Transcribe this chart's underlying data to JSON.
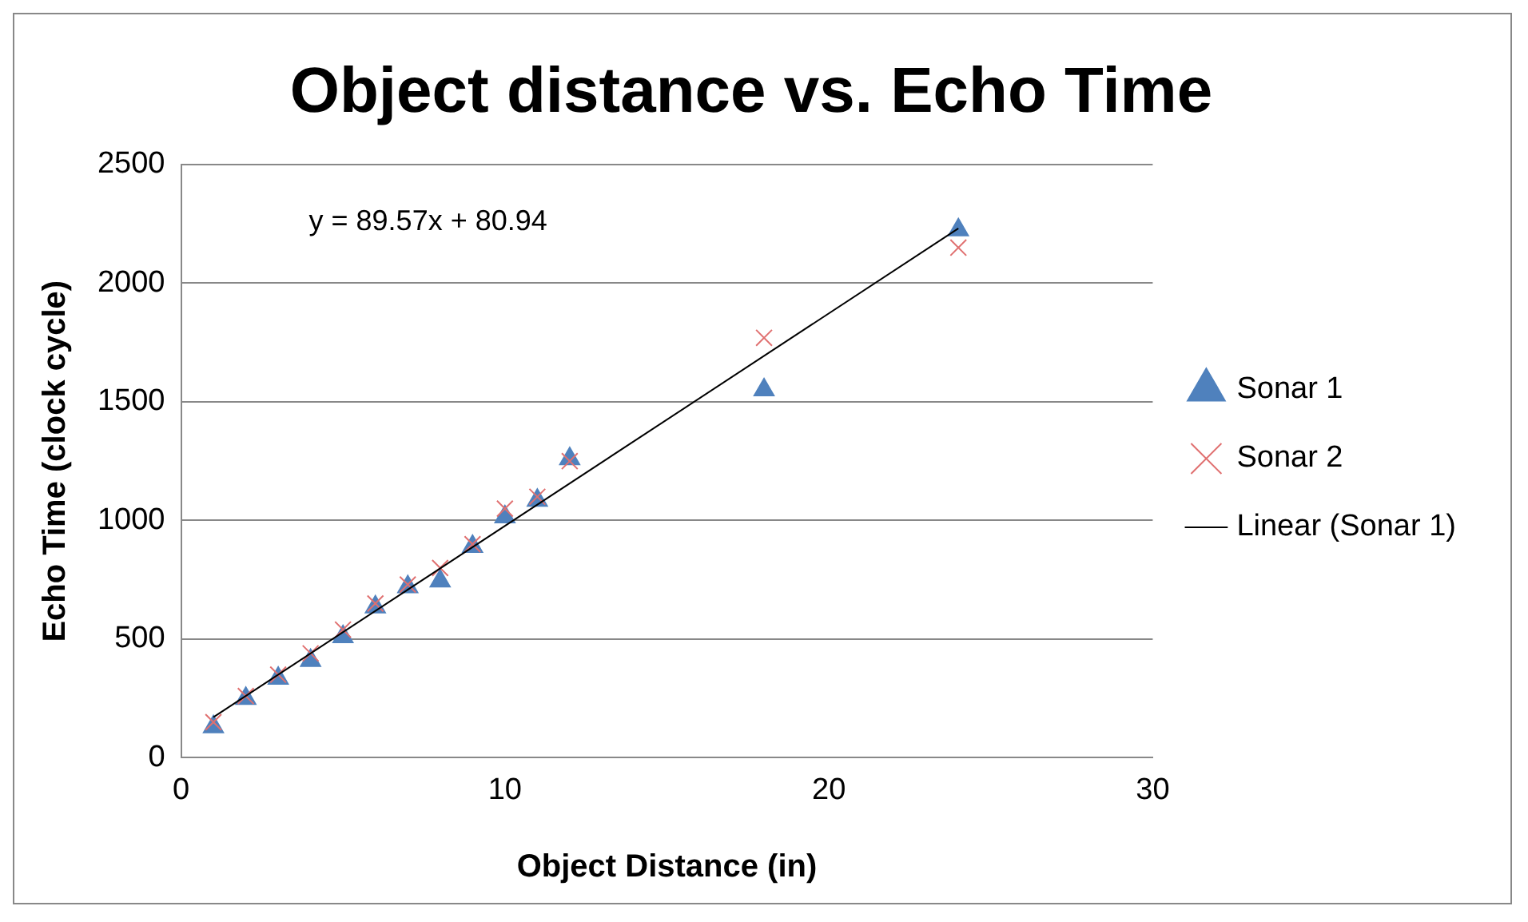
{
  "chart_data": {
    "type": "scatter",
    "title": "Object distance vs. Echo Time",
    "xlabel": "Object Distance (in)",
    "ylabel": "Echo Time (clock cycle)",
    "annotations": [
      "y = 89.57x + 80.94"
    ],
    "xlim": [
      0,
      30
    ],
    "xticks": [
      0,
      10,
      20,
      30
    ],
    "ylim": [
      0,
      2500
    ],
    "yticks": [
      0,
      500,
      1000,
      1500,
      2000,
      2500
    ],
    "grid": "y",
    "legend": "right",
    "series": [
      {
        "name": "Sonar 1",
        "marker": "triangle",
        "color": "#4f81bd",
        "x": [
          1,
          2,
          3,
          4,
          5,
          6,
          7,
          8,
          9,
          10,
          11,
          12,
          18,
          24
        ],
        "values": [
          130,
          250,
          335,
          410,
          510,
          635,
          720,
          745,
          890,
          1015,
          1085,
          1260,
          1550,
          2225
        ]
      },
      {
        "name": "Sonar 2",
        "marker": "cross",
        "color": "#e07070",
        "x": [
          1,
          2,
          3,
          4,
          5,
          6,
          7,
          8,
          9,
          10,
          11,
          12,
          18,
          24
        ],
        "values": [
          150,
          260,
          350,
          440,
          540,
          650,
          730,
          800,
          900,
          1050,
          1100,
          1250,
          1770,
          2150
        ]
      },
      {
        "name": "Linear (Sonar 1)",
        "type": "line",
        "marker": "none",
        "line_style": "solid",
        "color": "#000000",
        "x": [
          1,
          24
        ],
        "values": [
          171,
          2231
        ]
      }
    ]
  }
}
